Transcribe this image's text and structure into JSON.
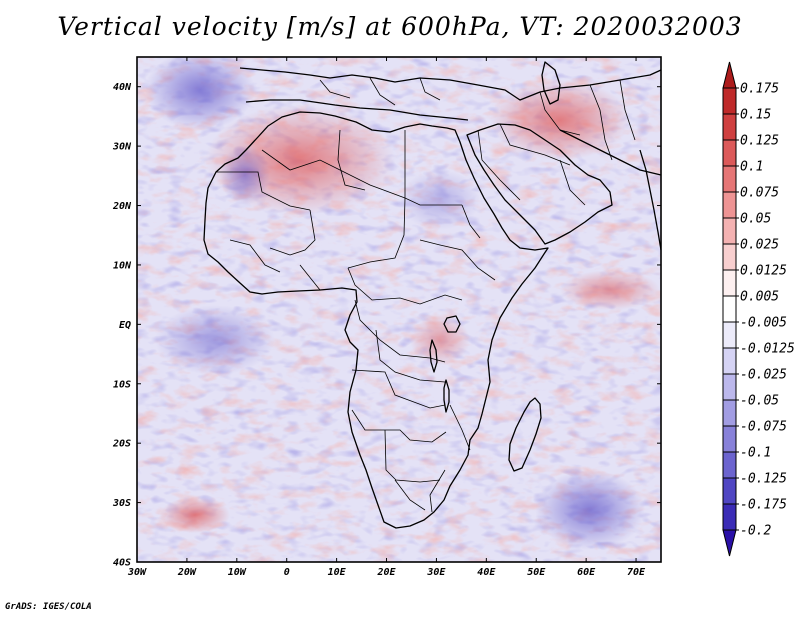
{
  "title": "Vertical velocity [m/s] at 600hPa, VT: 2020032003",
  "credit": "GrADS: IGES/COLA",
  "map": {
    "region": "Africa and surrounding oceans",
    "lon_range": [
      -30,
      75
    ],
    "lat_range": [
      -40,
      45
    ],
    "lat_ticks": [
      {
        "value": 40,
        "label": "40N"
      },
      {
        "value": 30,
        "label": "30N"
      },
      {
        "value": 20,
        "label": "20N"
      },
      {
        "value": 10,
        "label": "10N"
      },
      {
        "value": 0,
        "label": "EQ"
      },
      {
        "value": -10,
        "label": "10S"
      },
      {
        "value": -20,
        "label": "20S"
      },
      {
        "value": -30,
        "label": "30S"
      },
      {
        "value": -40,
        "label": "40S"
      }
    ],
    "lon_ticks": [
      {
        "value": -30,
        "label": "30W"
      },
      {
        "value": -20,
        "label": "20W"
      },
      {
        "value": -10,
        "label": "10W"
      },
      {
        "value": 0,
        "label": "0"
      },
      {
        "value": 10,
        "label": "10E"
      },
      {
        "value": 20,
        "label": "20E"
      },
      {
        "value": 30,
        "label": "30E"
      },
      {
        "value": 40,
        "label": "40E"
      },
      {
        "value": 50,
        "label": "50E"
      },
      {
        "value": 60,
        "label": "60E"
      },
      {
        "value": 70,
        "label": "70E"
      }
    ]
  },
  "colorbar": {
    "labels": [
      "0.175",
      "0.15",
      "0.125",
      "0.1",
      "0.075",
      "0.05",
      "0.025",
      "0.0125",
      "0.005",
      "-0.005",
      "-0.0125",
      "-0.025",
      "-0.05",
      "-0.075",
      "-0.1",
      "-0.125",
      "-0.175",
      "-0.2"
    ],
    "colors": [
      "#ad1c1c",
      "#bf2a2a",
      "#cf4040",
      "#dc5a5a",
      "#e67676",
      "#ee9494",
      "#f4b2b2",
      "#f8cfcf",
      "#fdf0f0",
      "#ffffff",
      "#ecebfa",
      "#d5d3f4",
      "#bcb8ec",
      "#a29de3",
      "#8881d9",
      "#6c64cf",
      "#5046c3",
      "#3b2cb6",
      "#2a10a8"
    ]
  }
}
